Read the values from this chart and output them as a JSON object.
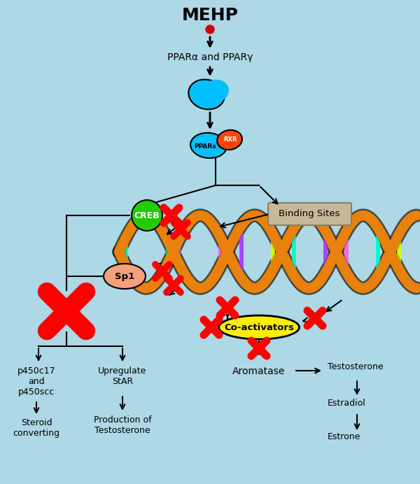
{
  "bg_color": "#add8e6",
  "title": "MEHP",
  "ppar_text": "PPARα and PPARγ",
  "binding_sites_text": "Binding Sites",
  "co_activators_text": "Co-activators",
  "creb_text": "CREB",
  "sp1_text": "Sp1",
  "ppars_text": "PPARs",
  "rxr_text": "RXR",
  "aromatase_text": "Aromatase",
  "testosterone_text": "Testosterone",
  "estradiol_text": "Estradiol",
  "estrone_text": "Estrone",
  "p450c17_text": "p450c17\nand\np450scc",
  "upregulate_text": "Upregulate\nStAR",
  "steroid_text": "Steroid\nconverting",
  "production_text": "Production of\nTestosterone",
  "red_cross_color": "#ff0000",
  "dna_orange": "#e8820c",
  "dna_outline": "#1a0a00",
  "creb_color": "#22cc00",
  "sp1_color": "#f4a07a",
  "coact_color": "#ffee00",
  "ppars_color": "#00bfff",
  "rxr_color": "#ff4500",
  "mehp_dot_color": "#cc0000",
  "binding_box_color": "#c8b89a",
  "binding_box_edge": "#8a8060",
  "arrow_color": "#000000",
  "base_colors": [
    "#00ffcc",
    "#ff66cc",
    "#ccff00",
    "#aa44ff",
    "#00ffcc",
    "#ff66cc",
    "#ccff00",
    "#aa44ff"
  ],
  "figw": 6.0,
  "figh": 6.92,
  "dpi": 100
}
